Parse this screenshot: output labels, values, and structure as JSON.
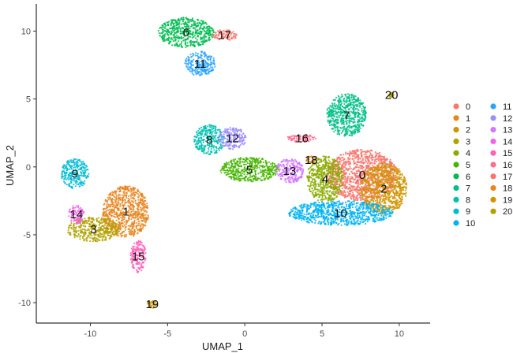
{
  "chart_data": {
    "type": "scatter",
    "xlabel": "UMAP_1",
    "ylabel": "UMAP_2",
    "xlim": [
      -13.5,
      12
    ],
    "ylim": [
      -11.5,
      12
    ],
    "x_ticks": [
      -10,
      -5,
      0,
      5,
      10
    ],
    "y_ticks": [
      -10,
      -5,
      0,
      5,
      10
    ],
    "grid": false,
    "legend_position": "right",
    "clusters": [
      {
        "name": "0",
        "color": "#F8766D",
        "cx": 7.6,
        "cy": -0.6,
        "rx": 2.3,
        "ry": 1.9
      },
      {
        "name": "1",
        "color": "#E7851E",
        "cx": -7.7,
        "cy": -3.3,
        "rx": 1.5,
        "ry": 1.9
      },
      {
        "name": "2",
        "color": "#D09400",
        "cx": 9.0,
        "cy": -1.6,
        "rx": 1.5,
        "ry": 1.9
      },
      {
        "name": "3",
        "color": "#B2A100",
        "cx": -9.8,
        "cy": -4.6,
        "rx": 1.7,
        "ry": 0.9
      },
      {
        "name": "4",
        "color": "#89AC00",
        "cx": 5.2,
        "cy": -0.9,
        "rx": 1.2,
        "ry": 1.7
      },
      {
        "name": "5",
        "color": "#45B500",
        "cx": 0.3,
        "cy": -0.2,
        "rx": 1.9,
        "ry": 0.9
      },
      {
        "name": "6",
        "color": "#00BC51",
        "cx": -3.8,
        "cy": 9.9,
        "rx": 1.8,
        "ry": 1.1
      },
      {
        "name": "7",
        "color": "#00C087",
        "cx": 6.6,
        "cy": 3.8,
        "rx": 1.3,
        "ry": 1.6
      },
      {
        "name": "8",
        "color": "#00C0B2",
        "cx": -2.3,
        "cy": 2.0,
        "rx": 1.0,
        "ry": 1.1
      },
      {
        "name": "9",
        "color": "#00BCD6",
        "cx": -11.0,
        "cy": -0.5,
        "rx": 0.9,
        "ry": 1.1
      },
      {
        "name": "10",
        "color": "#00B3F2",
        "cx": 6.2,
        "cy": -3.4,
        "rx": 3.4,
        "ry": 0.9
      },
      {
        "name": "11",
        "color": "#29A3FF",
        "cx": -2.9,
        "cy": 7.6,
        "rx": 1.0,
        "ry": 0.9
      },
      {
        "name": "12",
        "color": "#9C8DFF",
        "cx": -0.8,
        "cy": 2.1,
        "rx": 0.9,
        "ry": 0.8
      },
      {
        "name": "13",
        "color": "#D277FF",
        "cx": 2.9,
        "cy": -0.3,
        "rx": 0.9,
        "ry": 0.9
      },
      {
        "name": "14",
        "color": "#F365E6",
        "cx": -10.9,
        "cy": -3.5,
        "rx": 0.5,
        "ry": 0.7
      },
      {
        "name": "15",
        "color": "#FF62BC",
        "cx": -6.9,
        "cy": -6.6,
        "rx": 0.5,
        "ry": 1.2
      },
      {
        "name": "16",
        "color": "#FF6C90",
        "cx": 3.7,
        "cy": 2.1,
        "rx": 1.0,
        "ry": 0.3
      },
      {
        "name": "17",
        "color": "#F8766D",
        "cx": -1.3,
        "cy": 9.7,
        "rx": 0.8,
        "ry": 0.4
      },
      {
        "name": "18",
        "color": "#E7851E",
        "cx": 4.3,
        "cy": 0.5,
        "rx": 0.4,
        "ry": 0.3
      },
      {
        "name": "19",
        "color": "#D09400",
        "cx": -6.0,
        "cy": -10.1,
        "rx": 0.3,
        "ry": 0.3
      },
      {
        "name": "20",
        "color": "#B2A100",
        "cx": 9.5,
        "cy": 5.3,
        "rx": 0.2,
        "ry": 0.2
      }
    ]
  },
  "legend": {
    "columns": [
      [
        {
          "label": "0",
          "color": "#F8766D"
        },
        {
          "label": "1",
          "color": "#E7851E"
        },
        {
          "label": "2",
          "color": "#D09400"
        },
        {
          "label": "3",
          "color": "#B2A100"
        },
        {
          "label": "4",
          "color": "#89AC00"
        },
        {
          "label": "5",
          "color": "#45B500"
        },
        {
          "label": "6",
          "color": "#00BC51"
        },
        {
          "label": "7",
          "color": "#00C087"
        },
        {
          "label": "8",
          "color": "#00C0B2"
        },
        {
          "label": "9",
          "color": "#00BCD6"
        },
        {
          "label": "10",
          "color": "#00B3F2"
        }
      ],
      [
        {
          "label": "11",
          "color": "#29A3FF"
        },
        {
          "label": "12",
          "color": "#9C8DFF"
        },
        {
          "label": "13",
          "color": "#D277FF"
        },
        {
          "label": "14",
          "color": "#F365E6"
        },
        {
          "label": "15",
          "color": "#FF62BC"
        },
        {
          "label": "16",
          "color": "#FF6C90"
        },
        {
          "label": "17",
          "color": "#F8766D"
        },
        {
          "label": "18",
          "color": "#E7851E"
        },
        {
          "label": "19",
          "color": "#D09400"
        },
        {
          "label": "20",
          "color": "#B2A100"
        }
      ]
    ]
  }
}
